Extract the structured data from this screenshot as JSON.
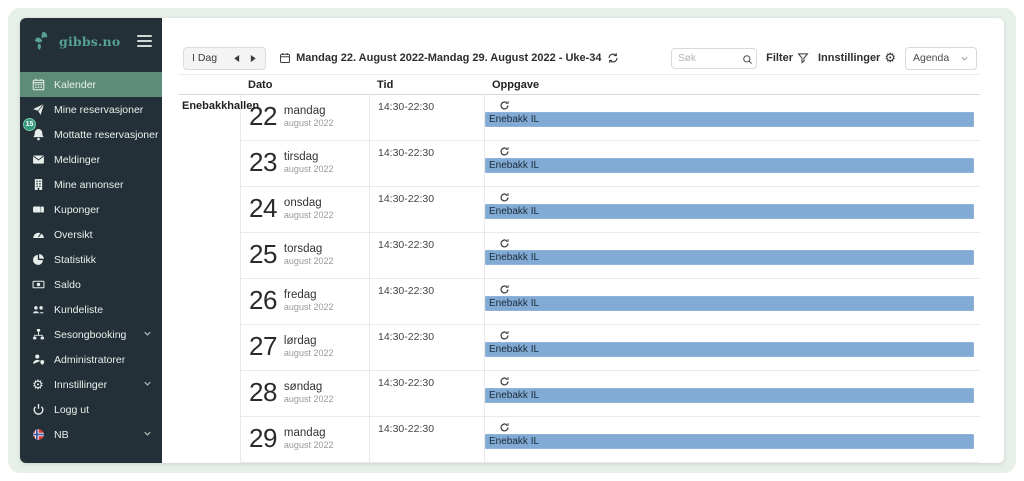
{
  "brand": {
    "name": "gibbs.no"
  },
  "colors": {
    "sidebar_bg": "#233037",
    "active_item": "#5d8c79",
    "brand_teal": "#57a290",
    "badge_green": "#35997b",
    "task_bar_blue": "#81abd4",
    "page_bg": "#e7efe9"
  },
  "sidebar": {
    "items": [
      {
        "label": "Kalender",
        "icon": "calendar-icon",
        "active": true
      },
      {
        "label": "Mine reservasjoner",
        "icon": "paper-plane-icon"
      },
      {
        "label": "Mottatte reservasjoner",
        "icon": "bell-icon",
        "badge": "15"
      },
      {
        "label": "Meldinger",
        "icon": "envelope-icon"
      },
      {
        "label": "Mine annonser",
        "icon": "building-icon"
      },
      {
        "label": "Kuponger",
        "icon": "ticket-icon"
      },
      {
        "label": "Oversikt",
        "icon": "gauge-icon"
      },
      {
        "label": "Statistikk",
        "icon": "pie-chart-icon"
      },
      {
        "label": "Saldo",
        "icon": "money-icon"
      },
      {
        "label": "Kundeliste",
        "icon": "users-icon"
      },
      {
        "label": "Sesongbooking",
        "icon": "sitemap-icon",
        "expandable": true
      },
      {
        "label": "Administratorer",
        "icon": "user-shield-icon"
      },
      {
        "label": "Innstillinger",
        "icon": "gear-icon",
        "expandable": true
      },
      {
        "label": "Logg ut",
        "icon": "power-icon"
      },
      {
        "label": "NB",
        "icon": "norway-flag-icon",
        "expandable": true
      }
    ]
  },
  "toolbar": {
    "today_label": "I Dag",
    "date_range": "Mandag 22. August 2022-Mandag 29. August 2022 - Uke-34",
    "search_placeholder": "Søk",
    "filter_label": "Filter",
    "settings_label": "Innstillinger",
    "view_selector": "Agenda"
  },
  "table": {
    "resource": "Enebakkhallen",
    "columns": [
      "Dato",
      "Tid",
      "Oppgave"
    ],
    "rows": [
      {
        "day": "22",
        "weekday": "mandag",
        "month": "august 2022",
        "time": "14:30-22:30",
        "task": "Enebakk IL"
      },
      {
        "day": "23",
        "weekday": "tirsdag",
        "month": "august 2022",
        "time": "14:30-22:30",
        "task": "Enebakk IL"
      },
      {
        "day": "24",
        "weekday": "onsdag",
        "month": "august 2022",
        "time": "14:30-22:30",
        "task": "Enebakk IL"
      },
      {
        "day": "25",
        "weekday": "torsdag",
        "month": "august 2022",
        "time": "14:30-22:30",
        "task": "Enebakk IL"
      },
      {
        "day": "26",
        "weekday": "fredag",
        "month": "august 2022",
        "time": "14:30-22:30",
        "task": "Enebakk IL"
      },
      {
        "day": "27",
        "weekday": "lørdag",
        "month": "august 2022",
        "time": "14:30-22:30",
        "task": "Enebakk IL"
      },
      {
        "day": "28",
        "weekday": "søndag",
        "month": "august 2022",
        "time": "14:30-22:30",
        "task": "Enebakk IL"
      },
      {
        "day": "29",
        "weekday": "mandag",
        "month": "august 2022",
        "time": "14:30-22:30",
        "task": "Enebakk IL"
      }
    ]
  }
}
